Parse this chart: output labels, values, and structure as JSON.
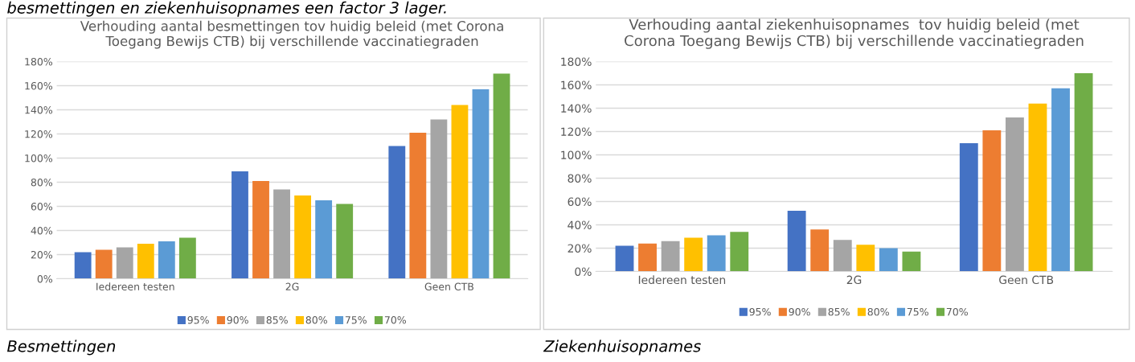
{
  "chart_data": [
    {
      "type": "bar",
      "title": "Verhouding aantal besmettingen tov huidig beleid (met Corona\nToegang Bewijs CTB) bij verschillende vaccinatiegraden",
      "categories": [
        "Iedereen testen",
        "2G",
        "Geen CTB"
      ],
      "series": [
        {
          "name": "95%",
          "color": "#4472c4",
          "values": [
            22,
            89,
            110
          ]
        },
        {
          "name": "90%",
          "color": "#ed7d31",
          "values": [
            24,
            81,
            121
          ]
        },
        {
          "name": "85%",
          "color": "#a5a5a5",
          "values": [
            26,
            74,
            132
          ]
        },
        {
          "name": "80%",
          "color": "#ffc000",
          "values": [
            29,
            69,
            144
          ]
        },
        {
          "name": "75%",
          "color": "#5b9bd5",
          "values": [
            31,
            65,
            157
          ]
        },
        {
          "name": "70%",
          "color": "#70ad47",
          "values": [
            34,
            62,
            170
          ]
        }
      ],
      "ylim": [
        0,
        180
      ],
      "yticks": [
        {
          "value": 0,
          "label": "0%"
        },
        {
          "value": 20,
          "label": "20%"
        },
        {
          "value": 40,
          "label": "40%"
        },
        {
          "value": 60,
          "label": "60%"
        },
        {
          "value": 80,
          "label": "80%"
        },
        {
          "value": 100,
          "label": "100%"
        },
        {
          "value": 120,
          "label": "120%"
        },
        {
          "value": 140,
          "label": "140%"
        },
        {
          "value": 160,
          "label": "160%"
        },
        {
          "value": 180,
          "label": "180%"
        }
      ],
      "grid": "y",
      "legend": "bottom",
      "annotations": [
        "besmettingen en ziekenhuisopnames een factor 3 lager.",
        "Besmettingen"
      ]
    },
    {
      "type": "bar",
      "title": "Verhouding aantal ziekenhuisopnames  tov huidig beleid (met\nCorona Toegang Bewijs CTB) bij verschillende vaccinatiegraden",
      "categories": [
        "Iedereen testen",
        "2G",
        "Geen CTB"
      ],
      "series": [
        {
          "name": "95%",
          "color": "#4472c4",
          "values": [
            22,
            52,
            110
          ]
        },
        {
          "name": "90%",
          "color": "#ed7d31",
          "values": [
            24,
            36,
            121
          ]
        },
        {
          "name": "85%",
          "color": "#a5a5a5",
          "values": [
            26,
            27,
            132
          ]
        },
        {
          "name": "80%",
          "color": "#ffc000",
          "values": [
            29,
            23,
            144
          ]
        },
        {
          "name": "75%",
          "color": "#5b9bd5",
          "values": [
            31,
            20,
            157
          ]
        },
        {
          "name": "70%",
          "color": "#70ad47",
          "values": [
            34,
            17,
            170
          ]
        }
      ],
      "ylim": [
        0,
        180
      ],
      "yticks": [
        {
          "value": 0,
          "label": "0%"
        },
        {
          "value": 20,
          "label": "20%"
        },
        {
          "value": 40,
          "label": "40%"
        },
        {
          "value": 60,
          "label": "60%"
        },
        {
          "value": 80,
          "label": "80%"
        },
        {
          "value": 100,
          "label": "100%"
        },
        {
          "value": 120,
          "label": "120%"
        },
        {
          "value": 140,
          "label": "140%"
        },
        {
          "value": 160,
          "label": "160%"
        },
        {
          "value": 180,
          "label": "180%"
        }
      ],
      "grid": "y",
      "legend": "bottom",
      "annotations": [
        "Ziekenhuisopnames"
      ]
    }
  ]
}
